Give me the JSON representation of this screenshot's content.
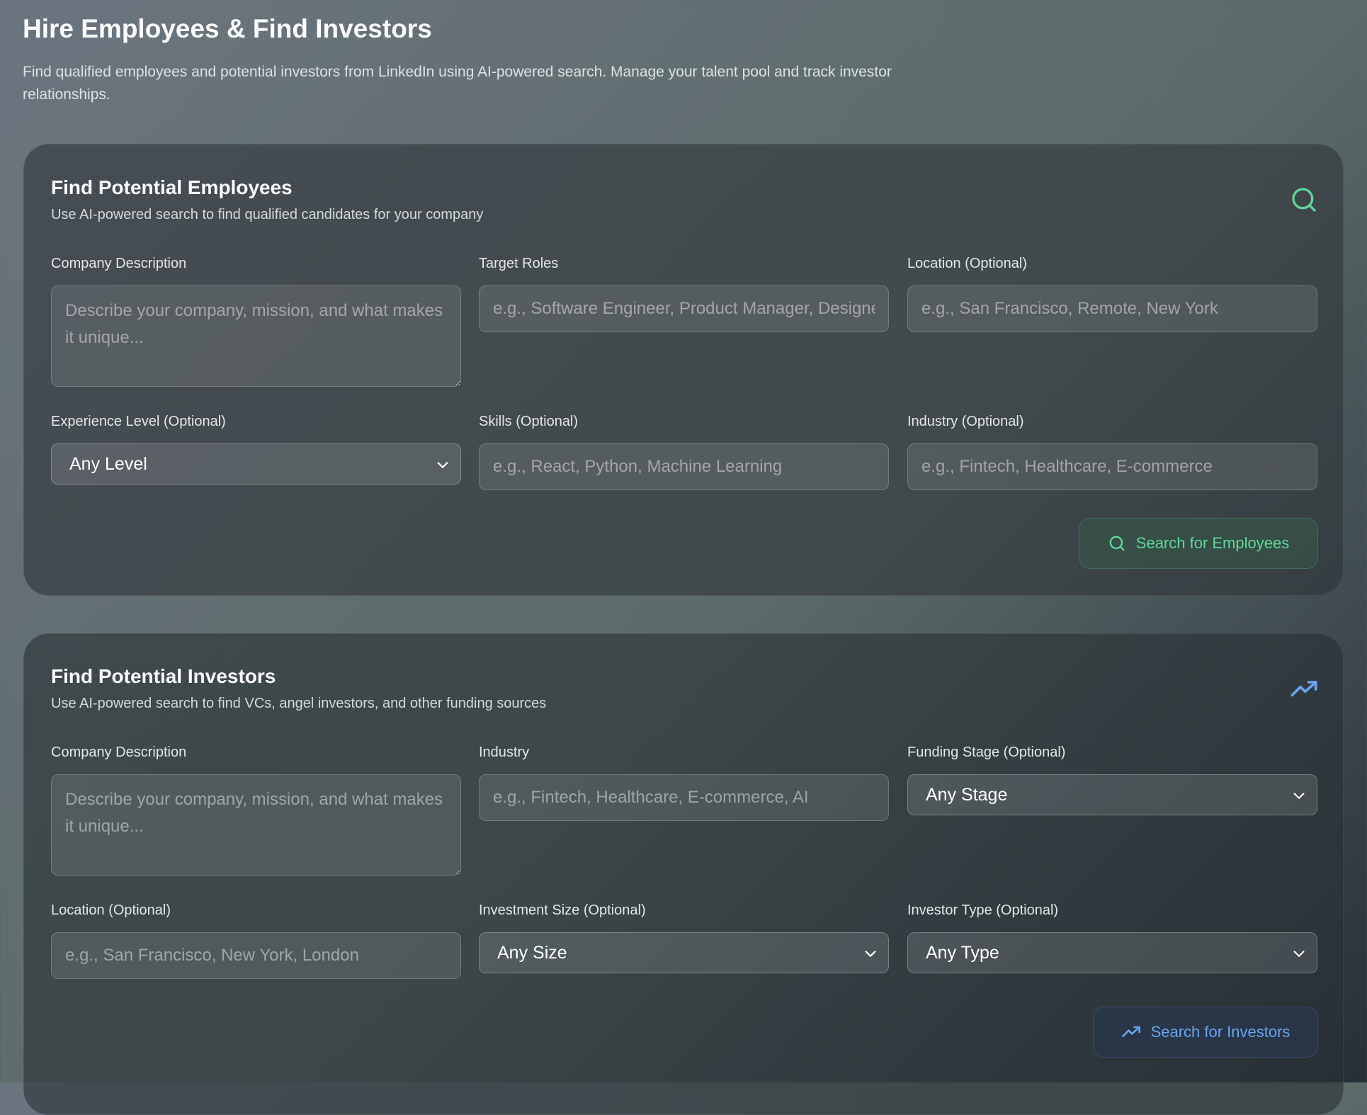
{
  "header": {
    "title": "Hire Employees & Find Investors",
    "subtitle": "Find qualified employees and potential investors from LinkedIn using AI-powered search. Manage your talent pool and track investor relationships."
  },
  "colors": {
    "employees_accent": "#5fd69a",
    "investors_accent": "#6aa2ef"
  },
  "employees": {
    "title": "Find Potential Employees",
    "description": "Use AI-powered search to find qualified candidates for your company",
    "header_icon": "search-icon",
    "company_description": {
      "label": "Company Description",
      "placeholder": "Describe your company, mission, and what makes it unique...",
      "value": ""
    },
    "target_roles": {
      "label": "Target Roles",
      "placeholder": "e.g., Software Engineer, Product Manager, Designer",
      "value": ""
    },
    "location": {
      "label": "Location (Optional)",
      "placeholder": "e.g., San Francisco, Remote, New York",
      "value": ""
    },
    "experience_level": {
      "label": "Experience Level (Optional)",
      "selected": "Any Level"
    },
    "skills": {
      "label": "Skills (Optional)",
      "placeholder": "e.g., React, Python, Machine Learning",
      "value": ""
    },
    "industry": {
      "label": "Industry (Optional)",
      "placeholder": "e.g., Fintech, Healthcare, E-commerce",
      "value": ""
    },
    "search_button": {
      "label": "Search for Employees",
      "icon": "search-icon"
    }
  },
  "investors": {
    "title": "Find Potential Investors",
    "description": "Use AI-powered search to find VCs, angel investors, and other funding sources",
    "header_icon": "trending-up-icon",
    "company_description": {
      "label": "Company Description",
      "placeholder": "Describe your company, mission, and what makes it unique...",
      "value": ""
    },
    "industry": {
      "label": "Industry",
      "placeholder": "e.g., Fintech, Healthcare, E-commerce, AI",
      "value": ""
    },
    "funding_stage": {
      "label": "Funding Stage (Optional)",
      "selected": "Any Stage"
    },
    "location": {
      "label": "Location (Optional)",
      "placeholder": "e.g., San Francisco, New York, London",
      "value": ""
    },
    "investment_size": {
      "label": "Investment Size (Optional)",
      "selected": "Any Size"
    },
    "investor_type": {
      "label": "Investor Type (Optional)",
      "selected": "Any Type"
    },
    "search_button": {
      "label": "Search for Investors",
      "icon": "trending-up-icon"
    }
  }
}
